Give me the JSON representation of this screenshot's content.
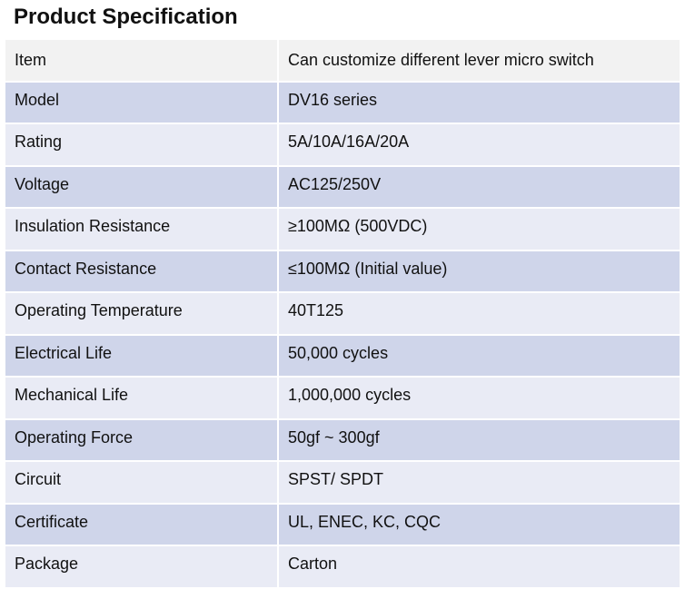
{
  "title": "Product Specification",
  "colors": {
    "header_row": "#f2f2f2",
    "dark_row": "#cfd5ea",
    "light_row": "#e9ebf5"
  },
  "table": {
    "header": {
      "label": "Item",
      "value": "Can customize different lever micro switch"
    },
    "rows": [
      {
        "label": "Model",
        "value": "DV16 series"
      },
      {
        "label": "Rating",
        "value": "5A/10A/16A/20A"
      },
      {
        "label": "Voltage",
        "value": "AC125/250V"
      },
      {
        "label": "Insulation Resistance",
        "value": "≥100MΩ (500VDC)"
      },
      {
        "label": "Contact Resistance",
        "value": "≤100MΩ (Initial value)"
      },
      {
        "label": "Operating Temperature",
        "value": "40T125"
      },
      {
        "label": "Electrical Life",
        "value": "50,000 cycles"
      },
      {
        "label": "Mechanical Life",
        "value": "1,000,000 cycles"
      },
      {
        "label": "Operating Force",
        "value": "50gf ~ 300gf"
      },
      {
        "label": "Circuit",
        "value": "SPST/ SPDT"
      },
      {
        "label": "Certificate",
        "value": "UL, ENEC, KC, CQC"
      },
      {
        "label": "Package",
        "value": "Carton"
      }
    ]
  }
}
